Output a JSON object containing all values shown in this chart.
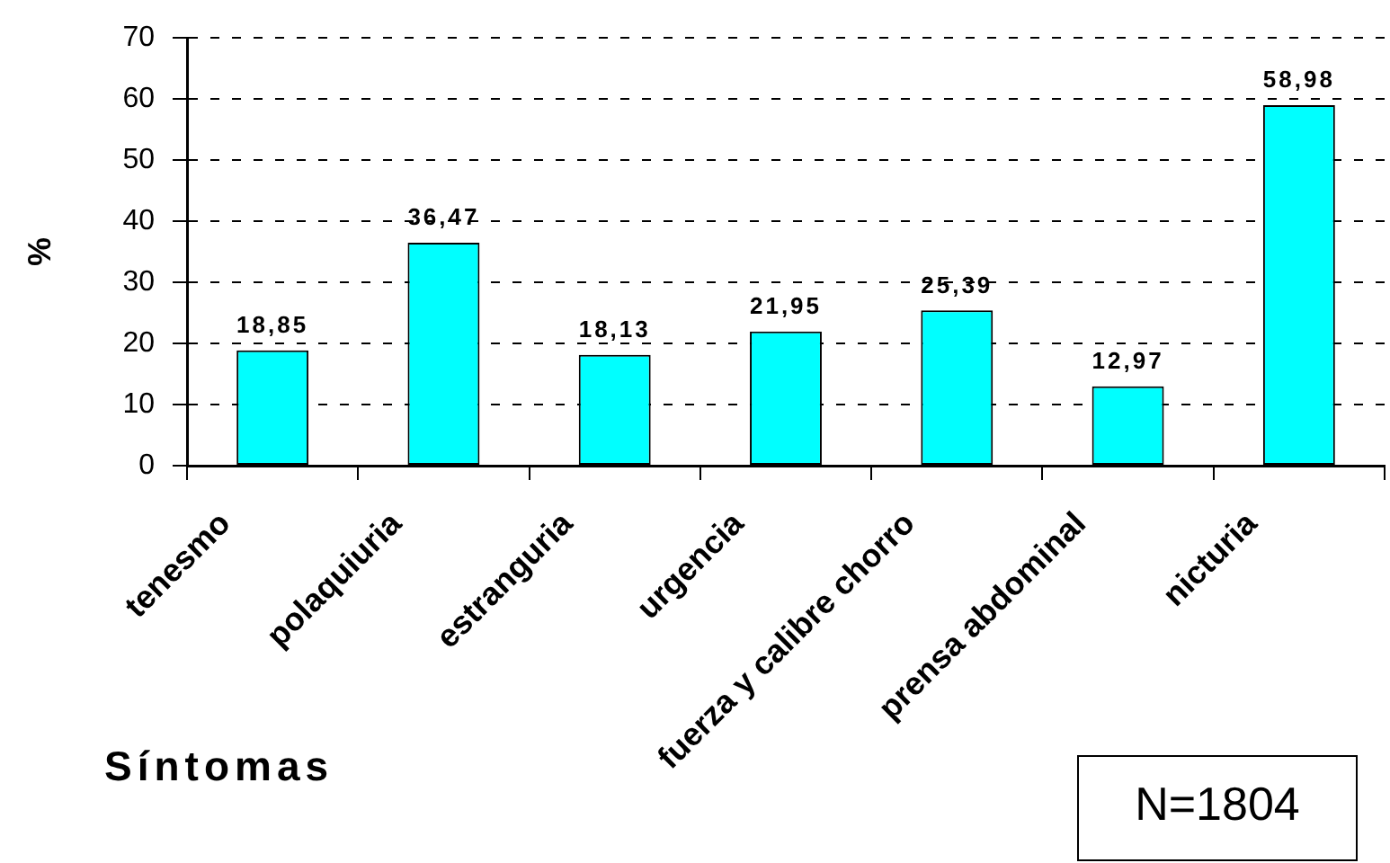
{
  "chart_data": {
    "type": "bar",
    "categories": [
      "tenesmo",
      "polaquiuria",
      "estranguria",
      "urgencia",
      "fuerza y calibre chorro",
      "prensa abdominal",
      "nicturia"
    ],
    "values": [
      18.85,
      36.47,
      18.13,
      21.95,
      25.39,
      12.97,
      58.98
    ],
    "value_labels": [
      "18,85",
      "36,47",
      "18,13",
      "21,95",
      "25,39",
      "12,97",
      "58,98"
    ],
    "color": "#00ffff",
    "ylabel": "%",
    "xlabel": "Síntomas",
    "ylim": [
      0,
      70
    ],
    "yticks": [
      0,
      10,
      20,
      30,
      40,
      50,
      60,
      70
    ],
    "grid": "y",
    "annotations": [
      "N=1804"
    ]
  }
}
